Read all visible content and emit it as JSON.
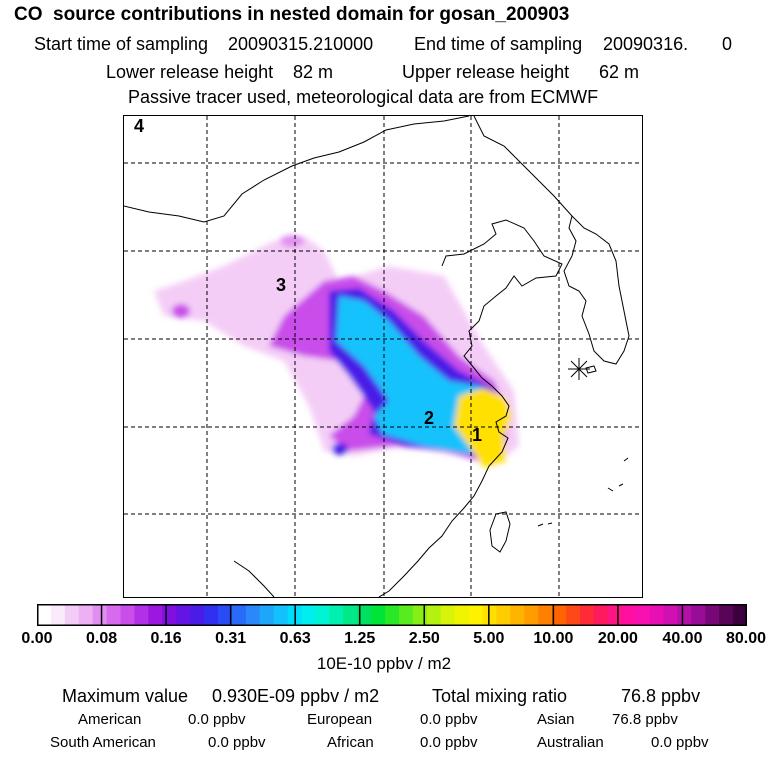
{
  "header": {
    "title": "CO  source contributions in nested domain for gosan_200903",
    "start_label": "Start time of sampling",
    "start_value": "20090315.210000",
    "end_label": "End time of sampling",
    "end_value": "20090316.",
    "end_suffix": "0",
    "lower_label": "Lower release height",
    "lower_value": "82 m",
    "upper_label": "Upper release height",
    "upper_value": "62 m",
    "note": "Passive tracer used, meteorological data are from ECMWF"
  },
  "chart_data": {
    "type": "heatmap",
    "title": "CO  source contributions in nested domain for gosan_200903",
    "region_labels": [
      "1",
      "2",
      "3",
      "4"
    ],
    "receptor_marker": "gosan",
    "colorbar": {
      "units": "10E-10 ppbv / m2",
      "tick_labels": [
        "0.00",
        "0.08",
        "0.16",
        "0.31",
        "0.63",
        "1.25",
        "2.50",
        "5.00",
        "10.00",
        "20.00",
        "40.00",
        "80.00"
      ],
      "colors": [
        "#ffffff",
        "#fbeafb",
        "#f4cdf6",
        "#edb0f2",
        "#e18ef0",
        "#d66ced",
        "#c94eea",
        "#b230e6",
        "#9a18e0",
        "#7f10e0",
        "#6414e4",
        "#4a1ce8",
        "#3030f0",
        "#2a4cf6",
        "#2a6af8",
        "#2a88fa",
        "#1ea6fb",
        "#12c2fc",
        "#00dcfc",
        "#00eef0",
        "#00f4d4",
        "#00f0b0",
        "#00e888",
        "#00e060",
        "#00e438",
        "#28e828",
        "#58ec20",
        "#88ee18",
        "#b4f010",
        "#d8f408",
        "#f0f400",
        "#fff200",
        "#ffe000",
        "#ffcc00",
        "#ffb400",
        "#ff9c00",
        "#ff8000",
        "#ff6400",
        "#ff4818",
        "#ff2c38",
        "#ff1a60",
        "#ff1484",
        "#ff10a0",
        "#f810b0",
        "#e810b4",
        "#d010b0",
        "#b410a8",
        "#980c98",
        "#780878",
        "#5a0458",
        "#3c003c"
      ]
    },
    "summary": {
      "maximum_value": "0.930E-09 ppbv / m2",
      "total_mixing_ratio": "76.8 ppbv",
      "american": "0.0 ppbv",
      "european": "0.0 ppbv",
      "asian": "76.8 ppbv",
      "south_american": "0.0 ppbv",
      "african": "0.0 ppbv",
      "australian": "0.0 ppbv"
    }
  },
  "labels": {
    "maximum": "Maximum value",
    "total": "Total mixing ratio",
    "american": "American",
    "european": "European",
    "asian": "Asian",
    "south_american": "South American",
    "african": "African",
    "australian": "Australian"
  }
}
